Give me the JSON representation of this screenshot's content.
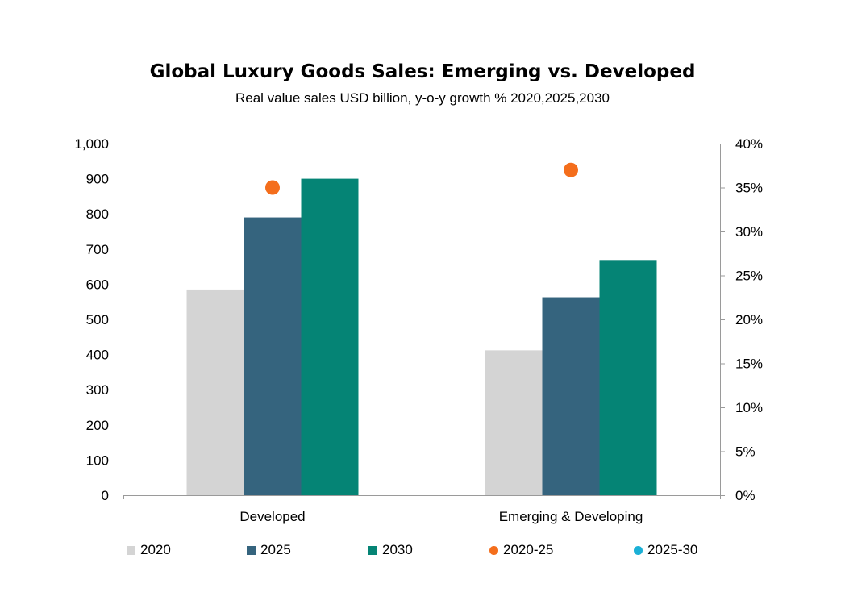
{
  "chart_data": {
    "type": "bar",
    "title": "Global Luxury Goods Sales: Emerging vs. Developed",
    "subtitle": "Real value sales USD billion, y-o-y growth % 2020,2025,2030",
    "categories": [
      "Developed",
      "Emerging & Developing"
    ],
    "series": [
      {
        "name": "2020",
        "type": "bar",
        "axis": "left",
        "color": "#d4d4d4",
        "values": [
          585,
          412
        ]
      },
      {
        "name": "2025",
        "type": "bar",
        "axis": "left",
        "color": "#35647e",
        "values": [
          790,
          563
        ]
      },
      {
        "name": "2030",
        "type": "bar",
        "axis": "left",
        "color": "#058475",
        "values": [
          900,
          669
        ]
      },
      {
        "name": "2020-25",
        "type": "scatter",
        "axis": "right",
        "color": "#f46e1c",
        "values": [
          35,
          37
        ]
      },
      {
        "name": "2025-30",
        "type": "scatter",
        "axis": "right",
        "color": "#1bb0d6",
        "values": [
          null,
          null
        ]
      }
    ],
    "y_left": {
      "ylim": [
        0,
        1000
      ],
      "ticks": [
        "0",
        "100",
        "200",
        "300",
        "400",
        "500",
        "600",
        "700",
        "800",
        "900",
        "1,000"
      ]
    },
    "y_right": {
      "ylim": [
        0,
        40
      ],
      "ticks": [
        "0%",
        "5%",
        "10%",
        "15%",
        "20%",
        "25%",
        "30%",
        "35%",
        "40%"
      ]
    },
    "grid": false,
    "legend_position": "bottom"
  }
}
